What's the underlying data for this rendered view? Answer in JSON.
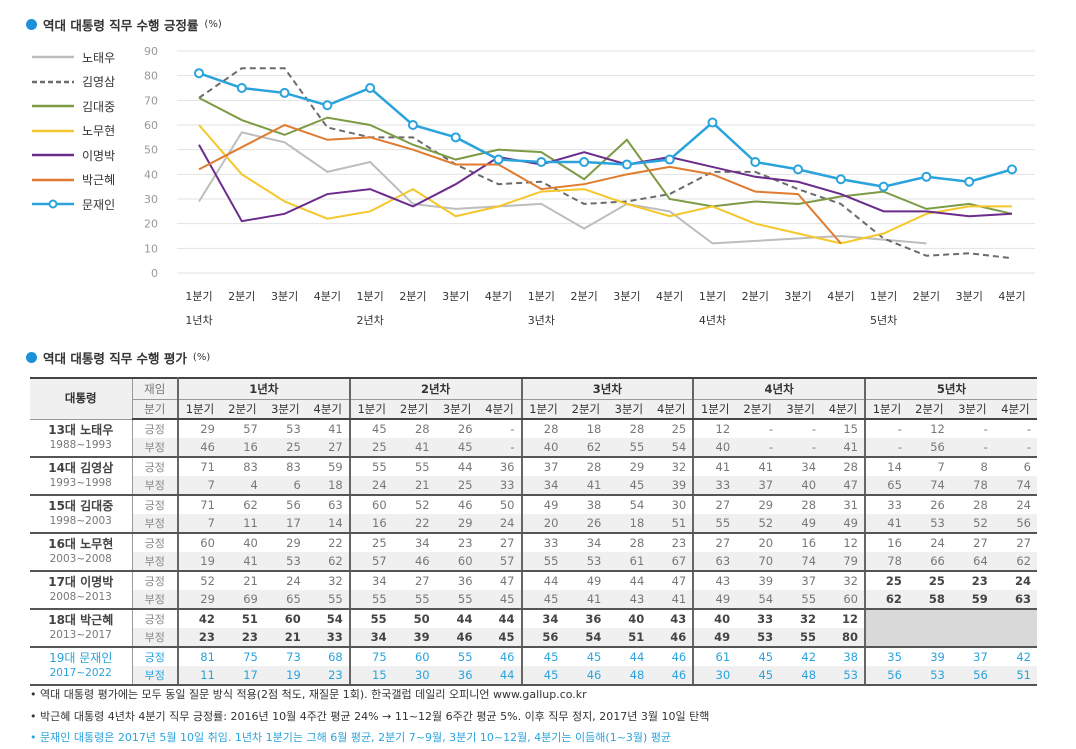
{
  "chart_title": "역대 대통령 직무 수행 긍정률",
  "chart_unit": "(%)",
  "table_title": "역대 대통령 직무 수행 평가",
  "table_unit": "(%)",
  "chart_data": {
    "type": "line",
    "title": "역대 대통령 직무 수행 긍정률 (%)",
    "ylim": [
      0,
      90
    ],
    "yticks": [
      "0",
      "10",
      "20",
      "30",
      "40",
      "50",
      "60",
      "70",
      "80",
      "90"
    ],
    "quarters": [
      "1분기",
      "2분기",
      "3분기",
      "4분기"
    ],
    "years": [
      "1년차",
      "2년차",
      "3년차",
      "4년차",
      "5년차"
    ],
    "grid": true,
    "legend": "left",
    "series": [
      {
        "name": "노태우",
        "color": "#bdbdbd",
        "dash": false,
        "marker": false,
        "values": [
          29,
          57,
          53,
          41,
          45,
          28,
          26,
          null,
          28,
          18,
          28,
          25,
          12,
          null,
          null,
          15,
          null,
          12,
          null,
          null
        ]
      },
      {
        "name": "김영삼",
        "color": "#6b6b6b",
        "dash": true,
        "marker": false,
        "values": [
          71,
          83,
          83,
          59,
          55,
          55,
          44,
          36,
          37,
          28,
          29,
          32,
          41,
          41,
          34,
          28,
          14,
          7,
          8,
          6
        ]
      },
      {
        "name": "김대중",
        "color": "#7d9a45",
        "dash": false,
        "marker": false,
        "values": [
          71,
          62,
          56,
          63,
          60,
          52,
          46,
          50,
          49,
          38,
          54,
          30,
          27,
          29,
          28,
          31,
          33,
          26,
          28,
          24
        ]
      },
      {
        "name": "노무현",
        "color": "#f5c72a",
        "dash": false,
        "marker": false,
        "values": [
          60,
          40,
          29,
          22,
          25,
          34,
          23,
          27,
          33,
          34,
          28,
          23,
          27,
          20,
          16,
          12,
          16,
          24,
          27,
          27
        ]
      },
      {
        "name": "이명박",
        "color": "#6b2c8c",
        "dash": false,
        "marker": false,
        "values": [
          52,
          21,
          24,
          32,
          34,
          27,
          36,
          47,
          44,
          49,
          44,
          47,
          43,
          39,
          37,
          32,
          25,
          25,
          23,
          24
        ]
      },
      {
        "name": "박근혜",
        "color": "#e07b30",
        "dash": false,
        "marker": false,
        "values": [
          42,
          51,
          60,
          54,
          55,
          50,
          44,
          44,
          34,
          36,
          40,
          43,
          40,
          33,
          32,
          12,
          null,
          null,
          null,
          null
        ]
      },
      {
        "name": "문재인",
        "color": "#2aa3dc",
        "dash": false,
        "marker": true,
        "values": [
          81,
          75,
          73,
          68,
          75,
          60,
          55,
          46,
          45,
          45,
          44,
          46,
          61,
          45,
          42,
          38,
          35,
          39,
          37,
          42
        ]
      }
    ]
  },
  "table": {
    "header_president": "대통령",
    "header_term": "재임",
    "header_quarter": "분기",
    "years": [
      "1년차",
      "2년차",
      "3년차",
      "4년차",
      "5년차"
    ],
    "quarters": [
      "1분기",
      "2분기",
      "3분기",
      "4분기"
    ],
    "pos_label": "긍정",
    "neg_label": "부정",
    "rows": [
      {
        "name": "13대 노태우",
        "term": "1988~1993",
        "pos": [
          "29",
          "57",
          "53",
          "41",
          "45",
          "28",
          "26",
          "-",
          "28",
          "18",
          "28",
          "25",
          "12",
          "-",
          "-",
          "15",
          "-",
          "12",
          "-",
          "-"
        ],
        "neg": [
          "46",
          "16",
          "25",
          "27",
          "25",
          "41",
          "45",
          "-",
          "40",
          "62",
          "55",
          "54",
          "40",
          "-",
          "-",
          "41",
          "-",
          "56",
          "-",
          "-"
        ]
      },
      {
        "name": "14대 김영삼",
        "term": "1993~1998",
        "pos": [
          "71",
          "83",
          "83",
          "59",
          "55",
          "55",
          "44",
          "36",
          "37",
          "28",
          "29",
          "32",
          "41",
          "41",
          "34",
          "28",
          "14",
          "7",
          "8",
          "6"
        ],
        "neg": [
          "7",
          "4",
          "6",
          "18",
          "24",
          "21",
          "25",
          "33",
          "34",
          "41",
          "45",
          "39",
          "33",
          "37",
          "40",
          "47",
          "65",
          "74",
          "78",
          "74"
        ]
      },
      {
        "name": "15대 김대중",
        "term": "1998~2003",
        "pos": [
          "71",
          "62",
          "56",
          "63",
          "60",
          "52",
          "46",
          "50",
          "49",
          "38",
          "54",
          "30",
          "27",
          "29",
          "28",
          "31",
          "33",
          "26",
          "28",
          "24"
        ],
        "neg": [
          "7",
          "11",
          "17",
          "14",
          "16",
          "22",
          "29",
          "24",
          "20",
          "26",
          "18",
          "51",
          "55",
          "52",
          "49",
          "49",
          "41",
          "53",
          "52",
          "56"
        ]
      },
      {
        "name": "16대 노무현",
        "term": "2003~2008",
        "pos": [
          "60",
          "40",
          "29",
          "22",
          "25",
          "34",
          "23",
          "27",
          "33",
          "34",
          "28",
          "23",
          "27",
          "20",
          "16",
          "12",
          "16",
          "24",
          "27",
          "27"
        ],
        "neg": [
          "19",
          "41",
          "53",
          "62",
          "57",
          "46",
          "60",
          "57",
          "55",
          "53",
          "61",
          "67",
          "63",
          "70",
          "74",
          "79",
          "78",
          "66",
          "64",
          "62"
        ]
      },
      {
        "name": "17대 이명박",
        "term": "2008~2013",
        "pos": [
          "52",
          "21",
          "24",
          "32",
          "34",
          "27",
          "36",
          "47",
          "44",
          "49",
          "44",
          "47",
          "43",
          "39",
          "37",
          "32",
          "25",
          "25",
          "23",
          "24"
        ],
        "neg": [
          "29",
          "69",
          "65",
          "55",
          "55",
          "55",
          "55",
          "45",
          "45",
          "41",
          "43",
          "41",
          "49",
          "54",
          "55",
          "60",
          "62",
          "58",
          "59",
          "63"
        ]
      },
      {
        "name": "18대 박근혜",
        "term": "2013~2017",
        "pos": [
          "42",
          "51",
          "60",
          "54",
          "55",
          "50",
          "44",
          "44",
          "34",
          "36",
          "40",
          "43",
          "40",
          "33",
          "32",
          "12",
          null,
          null,
          null,
          null
        ],
        "neg": [
          "23",
          "23",
          "21",
          "33",
          "34",
          "39",
          "46",
          "45",
          "56",
          "54",
          "51",
          "46",
          "49",
          "53",
          "55",
          "80",
          null,
          null,
          null,
          null
        ]
      },
      {
        "name": "19대 문재인",
        "term": "2017~2022",
        "pos": [
          "81",
          "75",
          "73",
          "68",
          "75",
          "60",
          "55",
          "46",
          "45",
          "45",
          "44",
          "46",
          "61",
          "45",
          "42",
          "38",
          "35",
          "39",
          "37",
          "42"
        ],
        "neg": [
          "11",
          "17",
          "19",
          "23",
          "15",
          "30",
          "36",
          "44",
          "45",
          "46",
          "48",
          "46",
          "30",
          "45",
          "48",
          "53",
          "56",
          "53",
          "56",
          "51"
        ]
      }
    ]
  },
  "notes": [
    "• 역대 대통령 평가에는 모두 동일 질문 방식 적용(2점 척도, 재질문 1회). 한국갤럽 데일리 오피니언 www.gallup.co.kr",
    "• 박근혜 대통령 4년차 4분기 직무 긍정률: 2016년 10월 4주간 평균 24% → 11~12월 6주간 평균 5%. 이후 직무 정지, 2017년 3월 10일 탄핵",
    "• 문재인 대통령은 2017년 5월 10일 취임. 1년차 1분기는 그해 6월 평균, 2분기 7~9월, 3분기 10~12월, 4분기는 이듬해(1~3월) 평균"
  ]
}
